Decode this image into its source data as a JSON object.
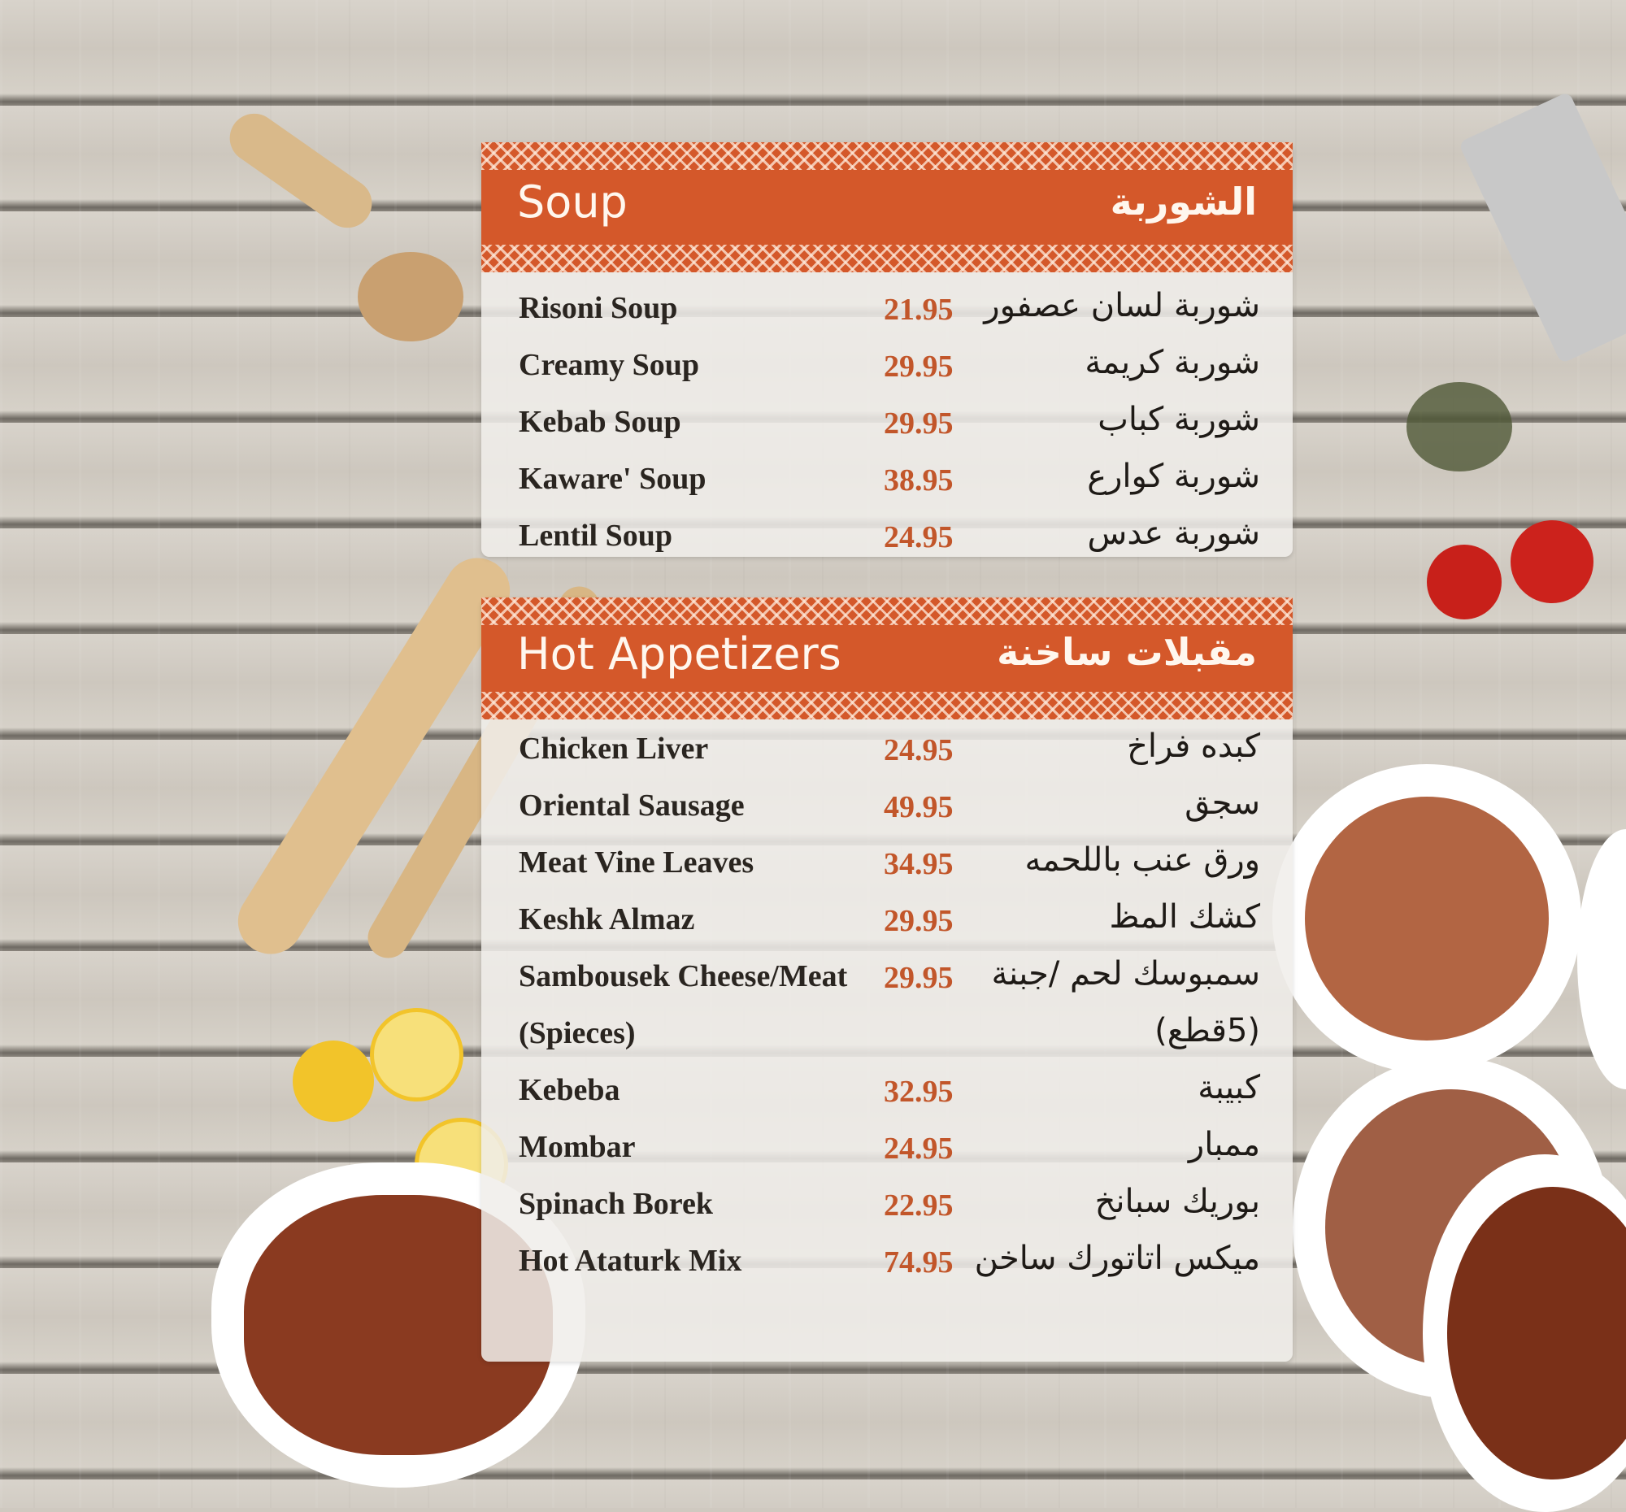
{
  "sections": [
    {
      "title": "Soup",
      "title_ar": "الشوربة",
      "items": [
        {
          "name": "Risoni Soup",
          "price": "21.95",
          "name_ar": "شوربة لسان عصفور"
        },
        {
          "name": "Creamy Soup",
          "price": "29.95",
          "name_ar": "شوربة كريمة"
        },
        {
          "name": "Kebab Soup",
          "price": "29.95",
          "name_ar": "شوربة كباب"
        },
        {
          "name": "Kaware' Soup",
          "price": "38.95",
          "name_ar": "شوربة كوارع"
        },
        {
          "name": "Lentil Soup",
          "price": "24.95",
          "name_ar": "شوربة عدس"
        }
      ]
    },
    {
      "title": "Hot Appetizers",
      "title_ar": "مقبلات ساخنة",
      "items": [
        {
          "name": "Chicken Liver",
          "price": "24.95",
          "name_ar": "كبده فراخ"
        },
        {
          "name": "Oriental Sausage",
          "price": "49.95",
          "name_ar": "سجق"
        },
        {
          "name": "Meat Vine Leaves",
          "price": "34.95",
          "name_ar": "ورق عنب باللحمه"
        },
        {
          "name": "Keshk Almaz",
          "price": "29.95",
          "name_ar": "كشك المظ"
        },
        {
          "name": "Sambousek Cheese/Meat",
          "price": "29.95",
          "name_ar": "سمبوسك لحم /جبنة"
        },
        {
          "name": "(Spieces)",
          "price": "",
          "name_ar": "(5قطع)"
        },
        {
          "name": "Kebeba",
          "price": "32.95",
          "name_ar": "كبيبة"
        },
        {
          "name": "Mombar",
          "price": "24.95",
          "name_ar": "ممبار"
        },
        {
          "name": "Spinach Borek",
          "price": "22.95",
          "name_ar": "بوريك سبانخ"
        },
        {
          "name": "Hot Ataturk Mix",
          "price": "74.95",
          "name_ar": "ميكس اتاتورك ساخن"
        }
      ]
    }
  ],
  "colors": {
    "banner": "#d4582a",
    "price": "#c2562a"
  }
}
